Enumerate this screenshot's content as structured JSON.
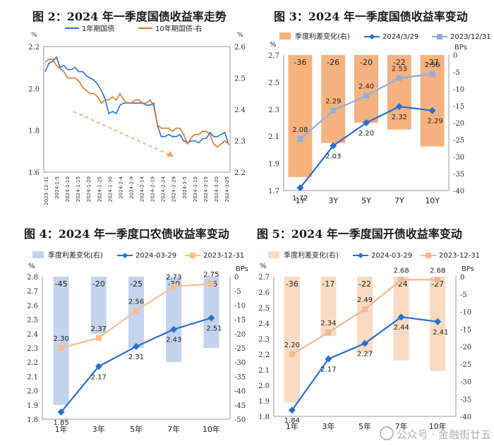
{
  "watermark": "公众号 · 金融街廿五",
  "colors": {
    "blue_dark": "#2a6fd0",
    "blue_light": "#8fb0dd",
    "orange": "#d9782b",
    "fig3_bar": "#f5b27f",
    "fig4_bar": "#c3d4ec",
    "fig5_bar": "#f9dbc3",
    "fig5_line_light": "#f4b98f",
    "fig4_line_light": "#f6c08a"
  },
  "chart_data": [
    {
      "id": "fig2",
      "type": "line",
      "title": "图 2：2024 年一季度国债收益率走势",
      "ylabel_left": "%",
      "ylabel_right": "%",
      "ylim_left": [
        1.6,
        2.2
      ],
      "ylim_right": [
        2.2,
        2.6
      ],
      "yticks_left": [
        1.6,
        1.8,
        2.0,
        2.2
      ],
      "yticks_right": [
        2.2,
        2.3,
        2.4,
        2.5,
        2.6
      ],
      "ytick_labels_left": [
        "1.6",
        "1.8",
        "2.0",
        "2.2"
      ],
      "ytick_labels_right": [
        "2.2",
        "2.3",
        "2.4",
        "2.5",
        "2.6"
      ],
      "x_tick_labels": [
        "2023-12-31",
        "2024-1-5",
        "2024-1-10",
        "2024-1-15",
        "2024-1-20",
        "2024-1-25",
        "2024-1-30",
        "2024-2-4",
        "2024-2-9",
        "2024-2-14",
        "2024-2-19",
        "2024-2-24",
        "2024-2-29",
        "2024-3-5",
        "2024-3-10",
        "2024-3-15",
        "2024-3-20",
        "2024-3-25"
      ],
      "series": [
        {
          "name": "1年期国债",
          "axis": "left",
          "values": [
            2.08,
            2.12,
            2.13,
            2.15,
            2.1,
            2.11,
            2.09,
            2.09,
            2.1,
            2.08,
            2.08,
            2.06,
            2.05,
            2.04,
            2.02,
            1.99,
            1.95,
            1.88,
            1.89,
            1.88,
            1.92,
            1.93,
            1.93,
            1.93,
            1.93,
            1.93,
            1.93,
            1.92,
            1.92,
            1.93,
            1.82,
            1.77,
            1.77,
            1.78,
            1.77,
            1.77,
            1.78,
            1.75,
            1.74,
            1.75,
            1.75,
            1.74,
            1.76,
            1.76,
            1.79,
            1.77,
            1.77,
            1.78,
            1.79,
            1.73
          ]
        },
        {
          "name": "10年期国债-右",
          "axis": "right",
          "values": [
            2.55,
            2.56,
            2.56,
            2.54,
            2.53,
            2.52,
            2.5,
            2.5,
            2.5,
            2.49,
            2.47,
            2.46,
            2.45,
            2.45,
            2.44,
            2.42,
            2.43,
            2.43,
            2.44,
            2.43,
            2.45,
            2.43,
            2.42,
            2.42,
            2.43,
            2.43,
            2.42,
            2.42,
            2.43,
            2.41,
            2.35,
            2.34,
            2.34,
            2.34,
            2.33,
            2.34,
            2.34,
            2.32,
            2.29,
            2.31,
            2.32,
            2.32,
            2.33,
            2.33,
            2.32,
            2.29,
            2.28,
            2.29,
            2.3,
            2.29
          ]
        }
      ],
      "annotation": "dashed trend arrow, downward"
    },
    {
      "id": "fig3",
      "type": "bar+line",
      "title": "图 3：2024 年一季度国债收益率变动",
      "categories": [
        "1Y",
        "3Y",
        "5Y",
        "7Y",
        "10Y"
      ],
      "ylabel_left": "%",
      "ylabel_right": "BPs",
      "ylim_left": [
        1.7,
        2.7
      ],
      "ylim_right": [
        -40,
        0
      ],
      "yticks_left": [
        1.7,
        1.9,
        2.1,
        2.3,
        2.5,
        2.7
      ],
      "yticks_right": [
        0,
        -5,
        -10,
        -15,
        -20,
        -25,
        -30,
        -35,
        -40
      ],
      "ytick_labels_left": [
        "1.7",
        "1.9",
        "2.1",
        "2.3",
        "2.5",
        "2.7"
      ],
      "ytick_labels_right": [
        "0",
        "-5",
        "-10",
        "-15",
        "-20",
        "-25",
        "-30",
        "-35",
        "-40"
      ],
      "bars": {
        "name": "季度利差变化(右)",
        "values": [
          -36,
          -26,
          -20,
          -22,
          -27
        ],
        "labels": [
          "-36",
          "-26",
          "-20",
          "-22",
          "-27"
        ]
      },
      "series": [
        {
          "name": "2024/3/29",
          "values": [
            1.72,
            2.03,
            2.2,
            2.32,
            2.29
          ],
          "labels": [
            "1.72",
            "2.03",
            "2.20",
            "2.32",
            "2.29"
          ]
        },
        {
          "name": "2023/12/31",
          "values": [
            2.08,
            2.29,
            2.4,
            2.53,
            2.56
          ],
          "labels": [
            "2.08",
            "2.29",
            "2.40",
            "2.53",
            "2.56"
          ]
        }
      ]
    },
    {
      "id": "fig4",
      "type": "bar+line",
      "title": "图 4：2024 年一季度口农债收益率变动",
      "categories": [
        "1年",
        "3年",
        "5年",
        "7年",
        "10年"
      ],
      "ylabel_left": "%",
      "ylabel_right": "BPs",
      "ylim_left": [
        1.8,
        2.8
      ],
      "ylim_right": [
        -50,
        0
      ],
      "yticks_left": [
        1.8,
        1.9,
        2.0,
        2.1,
        2.2,
        2.3,
        2.4,
        2.5,
        2.6,
        2.7,
        2.8
      ],
      "yticks_right": [
        0,
        -5,
        -10,
        -15,
        -20,
        -25,
        -30,
        -35,
        -40,
        -45,
        -50
      ],
      "ytick_labels_left": [
        "1.8",
        "1.9",
        "2.0",
        "2.1",
        "2.2",
        "2.3",
        "2.4",
        "2.5",
        "2.6",
        "2.7",
        "2.8"
      ],
      "ytick_labels_right": [
        "0",
        "-5",
        "-10",
        "-15",
        "-20",
        "-25",
        "-30",
        "-35",
        "-40",
        "-45",
        "-50"
      ],
      "bars": {
        "name": "季度利差变化(右)",
        "values": [
          -45,
          -20,
          -25,
          -30,
          -25
        ],
        "labels": [
          "-45",
          "-20",
          "-25",
          "-30",
          "-25"
        ]
      },
      "series": [
        {
          "name": "2024-03-29",
          "values": [
            1.85,
            2.17,
            2.31,
            2.43,
            2.51
          ],
          "labels": [
            "1.85",
            "2.17",
            "2.31",
            "2.43",
            "2.51"
          ]
        },
        {
          "name": "2023-12-31",
          "values": [
            2.3,
            2.37,
            2.56,
            2.73,
            2.75
          ],
          "labels": [
            "2.30",
            "2.37",
            "2.56",
            "2.73",
            "2.75"
          ]
        }
      ]
    },
    {
      "id": "fig5",
      "type": "bar+line",
      "title": "图 5：2024 年一季度国开债收益率变动",
      "categories": [
        "1年",
        "3年",
        "5年",
        "7年",
        "10年"
      ],
      "ylabel_left": "%",
      "ylabel_right": "BPs",
      "ylim_left": [
        1.8,
        2.7
      ],
      "ylim_right": [
        -40,
        0
      ],
      "yticks_left": [
        1.8,
        1.9,
        2.0,
        2.1,
        2.2,
        2.3,
        2.4,
        2.5,
        2.6,
        2.7
      ],
      "yticks_right": [
        0,
        -5,
        -10,
        -15,
        -20,
        -25,
        -30,
        -35,
        -40
      ],
      "ytick_labels_left": [
        "1.8",
        "1.9",
        "2.0",
        "2.1",
        "2.2",
        "2.3",
        "2.4",
        "2.5",
        "2.6",
        "2.7"
      ],
      "ytick_labels_right": [
        "0",
        "-5",
        "-10",
        "-15",
        "-20",
        "-25",
        "-30",
        "-35",
        "-40"
      ],
      "bars": {
        "name": "季度利差变化(右)",
        "values": [
          -36,
          -17,
          -22,
          -24,
          -27
        ],
        "labels": [
          "-36",
          "-17",
          "-22",
          "-24",
          "-27"
        ]
      },
      "series": [
        {
          "name": "2024-03-29",
          "values": [
            1.84,
            2.17,
            2.27,
            2.44,
            2.41
          ],
          "labels": [
            "1.84",
            "2.17",
            "2.27",
            "2.44",
            "2.41"
          ]
        },
        {
          "name": "2023-12-31",
          "values": [
            2.2,
            2.34,
            2.49,
            2.68,
            2.68
          ],
          "labels": [
            "2.20",
            "2.34",
            "2.49",
            "2.68",
            "2.68"
          ]
        }
      ]
    }
  ]
}
